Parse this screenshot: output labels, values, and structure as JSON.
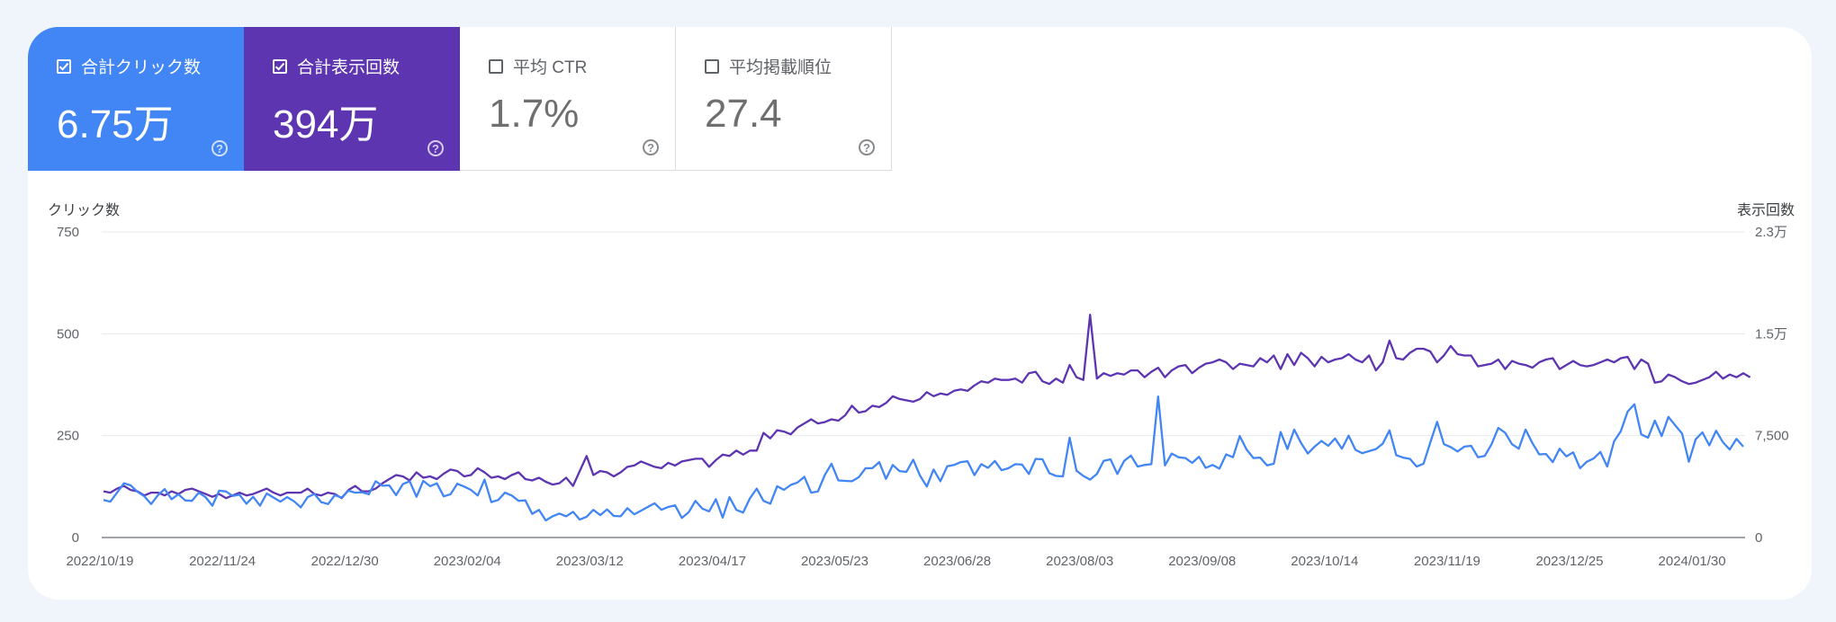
{
  "metrics": [
    {
      "label": "合計クリック数",
      "value": "6.75万",
      "checked": true,
      "color": "#4285f4"
    },
    {
      "label": "合計表示回数",
      "value": "394万",
      "checked": true,
      "color": "#5e35b1"
    },
    {
      "label": "平均 CTR",
      "value": "1.7%",
      "checked": false,
      "color": "#ffffff"
    },
    {
      "label": "平均掲載順位",
      "value": "27.4",
      "checked": false,
      "color": "#ffffff"
    }
  ],
  "icons": {
    "help": "help-circle-icon",
    "checkbox": "checkbox-icon"
  },
  "chart_data": {
    "type": "line",
    "ylabel_left": "クリック数",
    "ylabel_right": "表示回数",
    "yticks_left": [
      "0",
      "250",
      "500",
      "750"
    ],
    "yticks_right": [
      "0",
      "7,500",
      "1.5万",
      "2.3万"
    ],
    "ylim_left": [
      0,
      750
    ],
    "ylim_right": [
      0,
      22500
    ],
    "x_ticks": [
      "2022/10/19",
      "2022/11/24",
      "2022/12/30",
      "2023/02/04",
      "2023/03/12",
      "2023/04/17",
      "2023/05/23",
      "2023/06/28",
      "2023/08/03",
      "2023/09/08",
      "2023/10/14",
      "2023/11/19",
      "2023/12/25",
      "2024/01/30"
    ],
    "grid": true,
    "series": [
      {
        "axis": "left",
        "color": "#4285f4",
        "x_start": "2022/10/19",
        "step_days": 2,
        "values": [
          92,
          88,
          110,
          133,
          128,
          112,
          101,
          82,
          104,
          119,
          94,
          106,
          91,
          90,
          110,
          99,
          78,
          115,
          113,
          102,
          105,
          83,
          100,
          78,
          108,
          98,
          88,
          99,
          89,
          74,
          99,
          107,
          87,
          82,
          104,
          98,
          115,
          110,
          111,
          106,
          138,
          127,
          128,
          104,
          131,
          138,
          100,
          139,
          126,
          133,
          101,
          106,
          132,
          125,
          117,
          103,
          142,
          87,
          92,
          110,
          103,
          90,
          91,
          58,
          68,
          42,
          52,
          59,
          52,
          63,
          44,
          51,
          68,
          55,
          69,
          53,
          52,
          72,
          57,
          66,
          75,
          84,
          68,
          75,
          79,
          48,
          62,
          90,
          71,
          64,
          94,
          49,
          99,
          68,
          61,
          96,
          120,
          90,
          83,
          126,
          117,
          129,
          135,
          149,
          110,
          113,
          153,
          181,
          140,
          139,
          138,
          148,
          170,
          170,
          185,
          144,
          178,
          163,
          161,
          191,
          152,
          125,
          167,
          138,
          175,
          178,
          185,
          187,
          153,
          180,
          171,
          188,
          165,
          170,
          180,
          179,
          156,
          193,
          192,
          158,
          151,
          150,
          245,
          164,
          151,
          142,
          156,
          188,
          192,
          156,
          188,
          201,
          174,
          178,
          180,
          346,
          177,
          206,
          197,
          195,
          183,
          198,
          171,
          178,
          169,
          204,
          197,
          249,
          216,
          195,
          196,
          177,
          181,
          259,
          217,
          265,
          232,
          206,
          223,
          237,
          225,
          243,
          218,
          250,
          215,
          207,
          212,
          217,
          230,
          263,
          202,
          196,
          193,
          174,
          181,
          233,
          284,
          229,
          222,
          211,
          223,
          225,
          197,
          200,
          229,
          269,
          257,
          229,
          218,
          265,
          232,
          204,
          205,
          185,
          218,
          199,
          209,
          170,
          186,
          194,
          210,
          174,
          236,
          261,
          309,
          327,
          253,
          245,
          287,
          249,
          296,
          275,
          255,
          186,
          241,
          258,
          226,
          262,
          234,
          216,
          242,
          223
        ]
      },
      {
        "axis": "right",
        "color": "#5e35b1",
        "x_start": "2022/10/19",
        "step_days": 2,
        "values": [
          3400,
          3300,
          3600,
          3800,
          3500,
          3400,
          3100,
          3300,
          3300,
          3100,
          3400,
          3200,
          3500,
          3600,
          3400,
          3200,
          3000,
          3200,
          2900,
          3100,
          3300,
          3100,
          3200,
          3400,
          3600,
          3300,
          3100,
          3300,
          3300,
          3300,
          3600,
          3200,
          3100,
          3300,
          3200,
          2900,
          3500,
          3800,
          3400,
          3400,
          3600,
          4000,
          4300,
          4600,
          4500,
          4200,
          4800,
          4400,
          4500,
          4300,
          4700,
          5000,
          4900,
          4500,
          4600,
          5100,
          4800,
          4400,
          4500,
          4300,
          4600,
          4800,
          4300,
          4200,
          4400,
          4100,
          3900,
          4000,
          4400,
          3800,
          4900,
          6000,
          4600,
          4900,
          4800,
          4500,
          4800,
          5200,
          5300,
          5600,
          5400,
          5200,
          5100,
          5500,
          5300,
          5600,
          5700,
          5800,
          5800,
          5200,
          5700,
          6100,
          6000,
          6400,
          6100,
          6400,
          6400,
          7700,
          7300,
          7900,
          7800,
          7600,
          8100,
          8400,
          8700,
          8400,
          8500,
          8700,
          8600,
          9000,
          9700,
          9200,
          9300,
          9700,
          9600,
          9900,
          10400,
          10200,
          10100,
          10000,
          10200,
          10700,
          10400,
          10600,
          10500,
          10800,
          10900,
          10800,
          11200,
          11500,
          11400,
          11700,
          11600,
          11600,
          11700,
          11400,
          12100,
          12200,
          11500,
          11300,
          11700,
          11400,
          12700,
          11800,
          11600,
          16400,
          11700,
          12100,
          11900,
          12100,
          12000,
          12300,
          12300,
          11800,
          12200,
          12500,
          11800,
          12300,
          12600,
          12700,
          12100,
          12500,
          12800,
          12900,
          13100,
          12900,
          12400,
          12800,
          12700,
          12600,
          13200,
          12900,
          13400,
          12400,
          13500,
          12700,
          13600,
          13200,
          12600,
          13300,
          12900,
          13100,
          13200,
          13500,
          13100,
          12900,
          13400,
          12300,
          12900,
          14500,
          13200,
          13100,
          13600,
          13900,
          13900,
          13700,
          12900,
          13400,
          14100,
          13500,
          13400,
          13400,
          12600,
          12700,
          12800,
          13100,
          12400,
          13000,
          12800,
          12700,
          12500,
          12900,
          13100,
          13200,
          12400,
          12700,
          13000,
          12700,
          12600,
          12700,
          12900,
          13100,
          12900,
          13200,
          13300,
          12400,
          13100,
          12800,
          11400,
          11500,
          12000,
          11800,
          11500,
          11300,
          11400,
          11600,
          11800,
          12200,
          11700,
          12000,
          11800,
          12100,
          11800
        ]
      }
    ]
  }
}
